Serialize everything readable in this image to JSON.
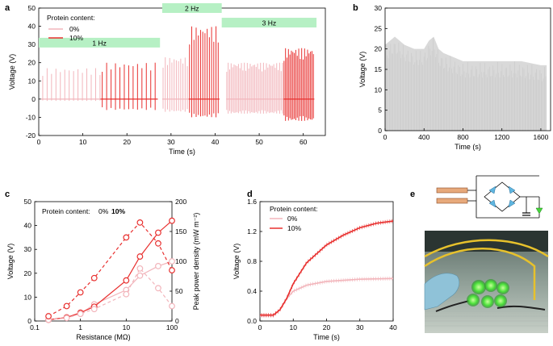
{
  "figure": {
    "panels": [
      "a",
      "b",
      "c",
      "d",
      "e"
    ]
  },
  "chart_data": [
    {
      "panel": "a",
      "type": "line",
      "xlabel": "Time (s)",
      "ylabel": "Voltage (V)",
      "xlim": [
        0,
        65
      ],
      "ylim": [
        -20,
        50
      ],
      "xticks": [
        0,
        10,
        20,
        30,
        40,
        50,
        60
      ],
      "yticks": [
        -20,
        -10,
        0,
        10,
        20,
        30,
        40,
        50
      ],
      "legend_title": "Protein content:",
      "legend": [
        "0%",
        "10%"
      ],
      "colors": {
        "p0": "#f2b5bb",
        "p10": "#e8302f",
        "band": "#b6f0c4"
      },
      "bands": [
        {
          "label": "1 Hz",
          "from": 0,
          "to": 27.5,
          "y": 31
        },
        {
          "label": "2 Hz",
          "from": 28,
          "to": 41.5,
          "y": 50
        },
        {
          "label": "3 Hz",
          "from": 41.5,
          "to": 63,
          "y": 42
        }
      ],
      "segments": [
        {
          "series": "0%",
          "from": 0.5,
          "to": 14,
          "freq": 1,
          "peak": 17,
          "trough": -1
        },
        {
          "series": "10%",
          "from": 14,
          "to": 27,
          "freq": 1,
          "peak": 20,
          "trough": -6
        },
        {
          "series": "0%",
          "from": 28,
          "to": 34,
          "freq": 2,
          "peak": 23,
          "trough": -7
        },
        {
          "series": "10%",
          "from": 34,
          "to": 41,
          "freq": 2,
          "peak": 40,
          "trough": -10
        },
        {
          "series": "0%",
          "from": 42.5,
          "to": 55.5,
          "freq": 3,
          "peak": 20,
          "trough": -8
        },
        {
          "series": "10%",
          "from": 55.5,
          "to": 62.5,
          "freq": 3,
          "peak": 28,
          "trough": -12
        }
      ]
    },
    {
      "panel": "b",
      "type": "area",
      "xlabel": "Time (s)",
      "ylabel": "Voltage (V)",
      "xlim": [
        0,
        1700
      ],
      "ylim": [
        0,
        30
      ],
      "xticks": [
        0,
        400,
        800,
        1200,
        1600
      ],
      "yticks": [
        0,
        5,
        10,
        15,
        20,
        25,
        30
      ],
      "envelope": [
        [
          0,
          21
        ],
        [
          100,
          23
        ],
        [
          200,
          21
        ],
        [
          300,
          20
        ],
        [
          400,
          20
        ],
        [
          450,
          22
        ],
        [
          500,
          23
        ],
        [
          550,
          20
        ],
        [
          600,
          19
        ],
        [
          700,
          18
        ],
        [
          800,
          17
        ],
        [
          1000,
          17
        ],
        [
          1200,
          17
        ],
        [
          1400,
          17
        ],
        [
          1600,
          16
        ],
        [
          1660,
          16
        ]
      ],
      "color": "#d9d9d9"
    },
    {
      "panel": "c",
      "type": "line",
      "xlabel": "Resistance (MΩ)",
      "ylabel": "Voltage (V)",
      "y2label": "Peak power density (mW m⁻²)",
      "xscale": "log",
      "xlim": [
        0.1,
        100
      ],
      "ylim": [
        0,
        50
      ],
      "y2lim": [
        0,
        200
      ],
      "xticks": [
        "0.1",
        "1",
        "10",
        "100"
      ],
      "xtick_values": [
        0.1,
        1,
        10,
        100
      ],
      "yticks": [
        0,
        10,
        20,
        30,
        40,
        50
      ],
      "y2ticks": [
        0,
        50,
        100,
        150,
        200
      ],
      "legend_label": "Protein content:",
      "legend": [
        "0%",
        "10%"
      ],
      "x": [
        0.2,
        0.5,
        1,
        2,
        10,
        20,
        50,
        100
      ],
      "series": [
        {
          "name": "0% voltage",
          "axis": "y",
          "style": "solid",
          "color": "#f2b5bb",
          "values": [
            0.5,
            1.5,
            3,
            7,
            13,
            19,
            23,
            25
          ]
        },
        {
          "name": "10% voltage",
          "axis": "y",
          "style": "solid",
          "color": "#e8302f",
          "values": [
            0.5,
            1.5,
            3.5,
            6,
            17,
            27,
            37,
            42
          ]
        },
        {
          "name": "0% power",
          "axis": "y2",
          "style": "dashed",
          "color": "#f2b5bb",
          "values": [
            2,
            5,
            12,
            20,
            45,
            88,
            55,
            25
          ]
        },
        {
          "name": "10% power",
          "axis": "y2",
          "style": "dashed",
          "color": "#e8302f",
          "values": [
            8,
            25,
            48,
            72,
            140,
            165,
            130,
            85
          ]
        }
      ]
    },
    {
      "panel": "d",
      "type": "line",
      "xlabel": "Time (s)",
      "ylabel": "Voltage (V)",
      "xlim": [
        0,
        40
      ],
      "ylim": [
        0,
        1.6
      ],
      "xticks": [
        0,
        10,
        20,
        30,
        40
      ],
      "yticks": [
        "0.0",
        "0.4",
        "0.8",
        "1.2",
        "1.6"
      ],
      "legend_title": "Protein content:",
      "legend": [
        "0%",
        "10%"
      ],
      "series": [
        {
          "name": "0%",
          "color": "#f2b5bb",
          "x": [
            0,
            4,
            6,
            8,
            10,
            14,
            20,
            30,
            40
          ],
          "values": [
            0.07,
            0.07,
            0.15,
            0.3,
            0.4,
            0.48,
            0.53,
            0.56,
            0.57
          ]
        },
        {
          "name": "10%",
          "color": "#e8302f",
          "x": [
            0,
            4,
            6,
            8,
            10,
            14,
            20,
            25,
            30,
            35,
            40
          ],
          "values": [
            0.08,
            0.08,
            0.15,
            0.3,
            0.5,
            0.78,
            1.02,
            1.15,
            1.25,
            1.31,
            1.34
          ]
        }
      ]
    }
  ]
}
